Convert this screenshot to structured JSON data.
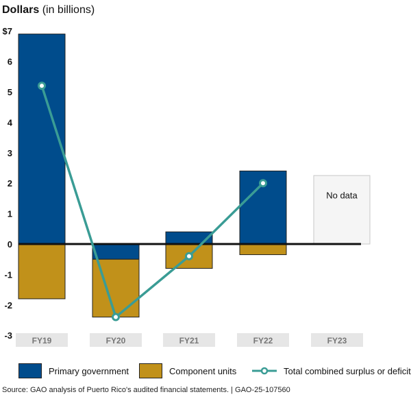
{
  "chart_data": {
    "type": "bar",
    "title_bold": "Dollars",
    "title_rest": "(in billions)",
    "categories": [
      "FY19",
      "FY20",
      "FY21",
      "FY22",
      "FY23"
    ],
    "series": [
      {
        "name": "Primary government",
        "kind": "stacked-bar",
        "color": "#004C8C",
        "values": [
          6.9,
          -0.5,
          0.4,
          2.4,
          null
        ]
      },
      {
        "name": "Component units",
        "kind": "stacked-bar",
        "color": "#C1911A",
        "values": [
          -1.8,
          -1.9,
          -0.8,
          -0.35,
          null
        ]
      },
      {
        "name": "Total combined surplus or deficit",
        "kind": "line",
        "color": "#3A9C95",
        "values": [
          5.2,
          -2.4,
          -0.4,
          2.0,
          null
        ]
      }
    ],
    "no_data_label": "No data",
    "no_data_category": "FY23",
    "yticks": [
      "$7",
      "6",
      "5",
      "4",
      "3",
      "2",
      "1",
      "0",
      "-1",
      "-2",
      "-3"
    ],
    "ytick_values": [
      7,
      6,
      5,
      4,
      3,
      2,
      1,
      0,
      -1,
      -2,
      -3
    ],
    "ylim": [
      -3,
      7
    ],
    "xlabel": "",
    "ylabel": "Dollars (in billions)",
    "legend_position": "bottom",
    "grid": false
  },
  "legend": {
    "primary": "Primary government",
    "component": "Component units",
    "total": "Total combined surplus or deficit"
  },
  "source": "Source: GAO analysis of Puerto Rico's audited financial statements.  |  GAO-25-107560"
}
